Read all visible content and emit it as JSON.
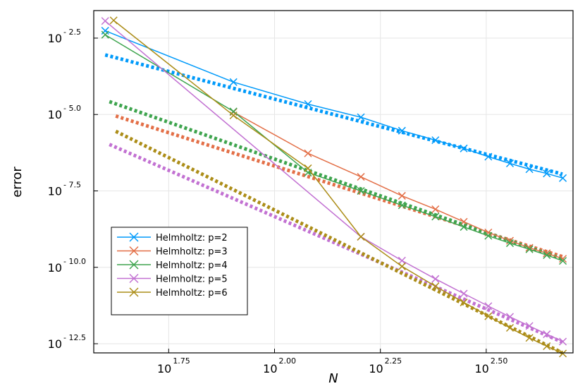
{
  "chart_data": {
    "type": "line",
    "xlabel": "N",
    "ylabel": "error",
    "xscale": "log10",
    "yscale": "log10",
    "xlim_log10": [
      1.573,
      2.705
    ],
    "ylim_log10": [
      -12.8,
      -1.6
    ],
    "xticks": [
      {
        "base": "10",
        "exp": "1.75",
        "log10": 1.75
      },
      {
        "base": "10",
        "exp": "2.00",
        "log10": 2.0
      },
      {
        "base": "10",
        "exp": "2.25",
        "log10": 2.25
      },
      {
        "base": "10",
        "exp": "2.50",
        "log10": 2.5
      }
    ],
    "yticks": [
      {
        "base": "10",
        "exp": "- 2.5",
        "log10": -2.5
      },
      {
        "base": "10",
        "exp": "- 5.0",
        "log10": -5.0
      },
      {
        "base": "10",
        "exp": "- 7.5",
        "log10": -7.5
      },
      {
        "base": "10",
        "exp": "- 10.0",
        "log10": -10.0
      },
      {
        "base": "10",
        "exp": "- 12.5",
        "log10": -12.5
      }
    ],
    "grid": true,
    "legend_position": "bottom-left",
    "series": [
      {
        "name": "Helmholtz: p=2",
        "color": "#009AFA",
        "marker": "x",
        "x_log10": [
          1.6,
          1.903,
          2.079,
          2.204,
          2.301,
          2.38,
          2.447,
          2.505,
          2.556,
          2.602,
          2.643,
          2.681
        ],
        "y_log10": [
          -2.26,
          -3.94,
          -4.66,
          -5.09,
          -5.53,
          -5.84,
          -6.11,
          -6.38,
          -6.6,
          -6.79,
          -6.93,
          -7.08
        ],
        "ref_x_log10": [
          1.6,
          2.68
        ],
        "ref_y_log10": [
          -3.05,
          -6.95
        ]
      },
      {
        "name": "Helmholtz: p=3",
        "color": "#E36F47",
        "marker": "x",
        "x_log10": [
          1.903,
          2.079,
          2.204,
          2.301,
          2.38,
          2.447,
          2.505,
          2.556,
          2.602,
          2.643,
          2.681
        ],
        "y_log10": [
          -4.92,
          -6.27,
          -7.04,
          -7.66,
          -8.1,
          -8.51,
          -8.86,
          -9.13,
          -9.36,
          -9.54,
          -9.72
        ],
        "ref_x_log10": [
          1.625,
          2.68
        ],
        "ref_y_log10": [
          -5.05,
          -9.65
        ]
      },
      {
        "name": "Helmholtz: p=4",
        "color": "#3EA44E",
        "marker": "x",
        "x_log10": [
          1.6,
          1.903,
          2.079,
          2.204,
          2.301,
          2.38,
          2.447,
          2.505,
          2.556,
          2.602,
          2.643,
          2.681
        ],
        "y_log10": [
          -2.39,
          -4.9,
          -6.9,
          -7.5,
          -7.97,
          -8.34,
          -8.68,
          -8.97,
          -9.21,
          -9.41,
          -9.6,
          -9.79
        ],
        "ref_x_log10": [
          1.61,
          2.68
        ],
        "ref_y_log10": [
          -4.58,
          -9.73
        ]
      },
      {
        "name": "Helmholtz: p=5",
        "color": "#C271D2",
        "marker": "x",
        "x_log10": [
          1.6,
          2.204,
          2.301,
          2.38,
          2.447,
          2.505,
          2.556,
          2.602,
          2.643,
          2.681
        ],
        "y_log10": [
          -1.94,
          -9.0,
          -9.78,
          -10.38,
          -10.86,
          -11.27,
          -11.62,
          -11.92,
          -12.19,
          -12.43
        ],
        "ref_x_log10": [
          1.61,
          2.68
        ],
        "ref_y_log10": [
          -5.98,
          -12.45
        ]
      },
      {
        "name": "Helmholtz: p=6",
        "color": "#AC8D18",
        "marker": "x",
        "x_log10": [
          1.62,
          1.903,
          2.079,
          2.204,
          2.301,
          2.38,
          2.447,
          2.505,
          2.556,
          2.602,
          2.643,
          2.681
        ],
        "y_log10": [
          -1.92,
          -5.03,
          -6.76,
          -9.0,
          -9.97,
          -10.62,
          -11.15,
          -11.6,
          -11.98,
          -12.31,
          -12.58,
          -12.82
        ],
        "ref_x_log10": [
          1.625,
          2.68
        ],
        "ref_y_log10": [
          -5.55,
          -12.8
        ]
      }
    ]
  }
}
